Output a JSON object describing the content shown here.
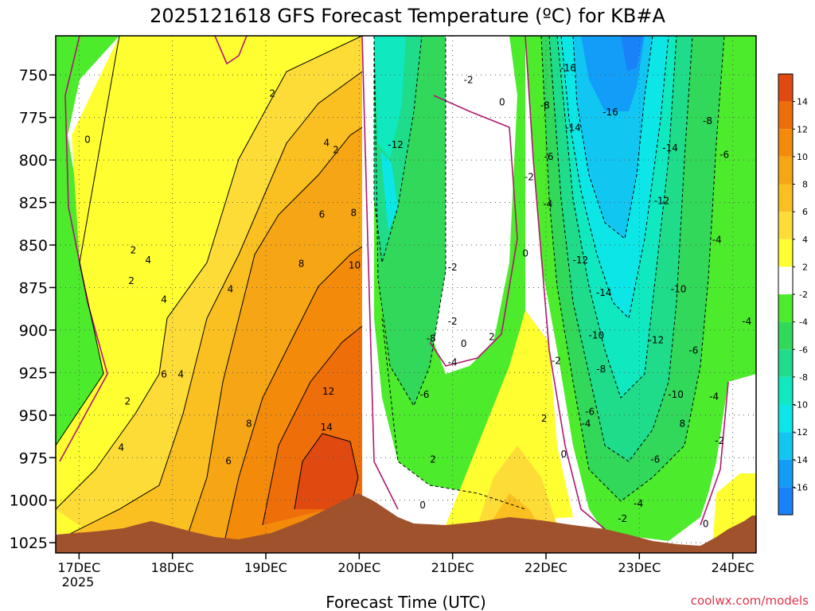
{
  "chart_data": {
    "type": "heatmap",
    "title": "2025121618 GFS Forecast Temperature (ºC) for KB#A",
    "xlabel": "Forecast Time (UTC)",
    "ylabel": "",
    "x_ticks": [
      "17DEC",
      "18DEC",
      "19DEC",
      "20DEC",
      "21DEC",
      "22DEC",
      "23DEC",
      "24DEC"
    ],
    "x_year": "2025",
    "y_ticks": [
      "750",
      "775",
      "800",
      "825",
      "850",
      "875",
      "900",
      "925",
      "950",
      "975",
      "1000",
      "1025"
    ],
    "y_values": [
      750,
      775,
      800,
      825,
      850,
      875,
      900,
      925,
      950,
      975,
      1000,
      1025
    ],
    "ylim": [
      1031,
      727
    ],
    "xlim": [
      -0.25,
      7.25
    ],
    "grid": true,
    "colorbar": {
      "levels": [
        14,
        12,
        10,
        8,
        6,
        4,
        2,
        -2,
        -4,
        -6,
        -8,
        -10,
        -12,
        -14,
        -16
      ],
      "colors": [
        "#e04a10",
        "#ee6e0a",
        "#f48a0a",
        "#f6a614",
        "#fac021",
        "#fedc38",
        "#fefe30",
        "#ffffff",
        "#4ceb2c",
        "#32d85a",
        "#1edc8a",
        "#10e8c0",
        "#0ce6e6",
        "#12c6f2",
        "#129ef8",
        "#1a82f8"
      ]
    },
    "contour_labels": [
      {
        "text": "0",
        "t": 0.09,
        "p": 788
      },
      {
        "text": "2",
        "t": 2.07,
        "p": 761
      },
      {
        "text": "2",
        "t": 0.58,
        "p": 853
      },
      {
        "text": "4",
        "t": 0.74,
        "p": 859
      },
      {
        "text": "2",
        "t": 0.56,
        "p": 871
      },
      {
        "text": "4",
        "t": 1.62,
        "p": 876
      },
      {
        "text": "4",
        "t": 0.91,
        "p": 882
      },
      {
        "text": "6",
        "t": 0.91,
        "p": 926
      },
      {
        "text": "4",
        "t": 1.09,
        "p": 926
      },
      {
        "text": "2",
        "t": 0.52,
        "p": 942
      },
      {
        "text": "4",
        "t": 0.45,
        "p": 969
      },
      {
        "text": "6",
        "t": 1.6,
        "p": 977
      },
      {
        "text": "8",
        "t": 1.82,
        "p": 955
      },
      {
        "text": "4",
        "t": 2.65,
        "p": 790
      },
      {
        "text": "2",
        "t": 2.75,
        "p": 794
      },
      {
        "text": "6",
        "t": 2.6,
        "p": 832
      },
      {
        "text": "8",
        "t": 2.94,
        "p": 831
      },
      {
        "text": "8",
        "t": 2.38,
        "p": 861
      },
      {
        "text": "10",
        "t": 2.95,
        "p": 862
      },
      {
        "text": "12",
        "t": 2.67,
        "p": 936
      },
      {
        "text": "14",
        "t": 2.65,
        "p": 957
      },
      {
        "text": "-12",
        "t": 3.39,
        "p": 791
      },
      {
        "text": "-2",
        "t": 4.17,
        "p": 753
      },
      {
        "text": "0",
        "t": 4.53,
        "p": 766
      },
      {
        "text": "-2",
        "t": 4.0,
        "p": 863
      },
      {
        "text": "-2",
        "t": 4.0,
        "p": 895
      },
      {
        "text": "-8",
        "t": 3.77,
        "p": 905
      },
      {
        "text": "-4",
        "t": 4.0,
        "p": 919
      },
      {
        "text": "0",
        "t": 4.12,
        "p": 908
      },
      {
        "text": "2",
        "t": 4.42,
        "p": 904
      },
      {
        "text": "-6",
        "t": 3.7,
        "p": 938
      },
      {
        "text": "2",
        "t": 3.79,
        "p": 976
      },
      {
        "text": "0",
        "t": 3.68,
        "p": 1003
      },
      {
        "text": "-16",
        "t": 5.24,
        "p": 746
      },
      {
        "text": "-8",
        "t": 4.99,
        "p": 768
      },
      {
        "text": "-14",
        "t": 5.29,
        "p": 781
      },
      {
        "text": "-16",
        "t": 5.69,
        "p": 772
      },
      {
        "text": "-8",
        "t": 6.73,
        "p": 777
      },
      {
        "text": "-14",
        "t": 6.33,
        "p": 793
      },
      {
        "text": "-6",
        "t": 5.03,
        "p": 798
      },
      {
        "text": "-6",
        "t": 6.91,
        "p": 797
      },
      {
        "text": "-2",
        "t": 4.82,
        "p": 810
      },
      {
        "text": "-4",
        "t": 5.02,
        "p": 826
      },
      {
        "text": "-12",
        "t": 6.24,
        "p": 824
      },
      {
        "text": "-4",
        "t": 6.83,
        "p": 847
      },
      {
        "text": "0",
        "t": 4.78,
        "p": 855
      },
      {
        "text": "-12",
        "t": 5.37,
        "p": 859
      },
      {
        "text": "-14",
        "t": 5.62,
        "p": 878
      },
      {
        "text": "-10",
        "t": 6.42,
        "p": 876
      },
      {
        "text": "-4",
        "t": 7.15,
        "p": 895
      },
      {
        "text": "-10",
        "t": 5.54,
        "p": 903
      },
      {
        "text": "-12",
        "t": 6.18,
        "p": 906
      },
      {
        "text": "-6",
        "t": 6.58,
        "p": 912
      },
      {
        "text": "-2",
        "t": 5.11,
        "p": 918
      },
      {
        "text": "-8",
        "t": 5.59,
        "p": 923
      },
      {
        "text": "-10",
        "t": 6.39,
        "p": 938
      },
      {
        "text": "-4",
        "t": 6.8,
        "p": 939
      },
      {
        "text": "-6",
        "t": 5.47,
        "p": 948
      },
      {
        "text": "2",
        "t": 4.98,
        "p": 952
      },
      {
        "text": "-4",
        "t": 5.43,
        "p": 955
      },
      {
        "text": "8",
        "t": 6.46,
        "p": 955
      },
      {
        "text": "-2",
        "t": 6.86,
        "p": 965
      },
      {
        "text": "0",
        "t": 5.19,
        "p": 973
      },
      {
        "text": "-6",
        "t": 6.17,
        "p": 976
      },
      {
        "text": "-4",
        "t": 5.99,
        "p": 1002
      },
      {
        "text": "-2",
        "t": 5.82,
        "p": 1011
      },
      {
        "text": "0",
        "t": 6.71,
        "p": 1014
      }
    ]
  },
  "credit": "coolwx.com/models"
}
